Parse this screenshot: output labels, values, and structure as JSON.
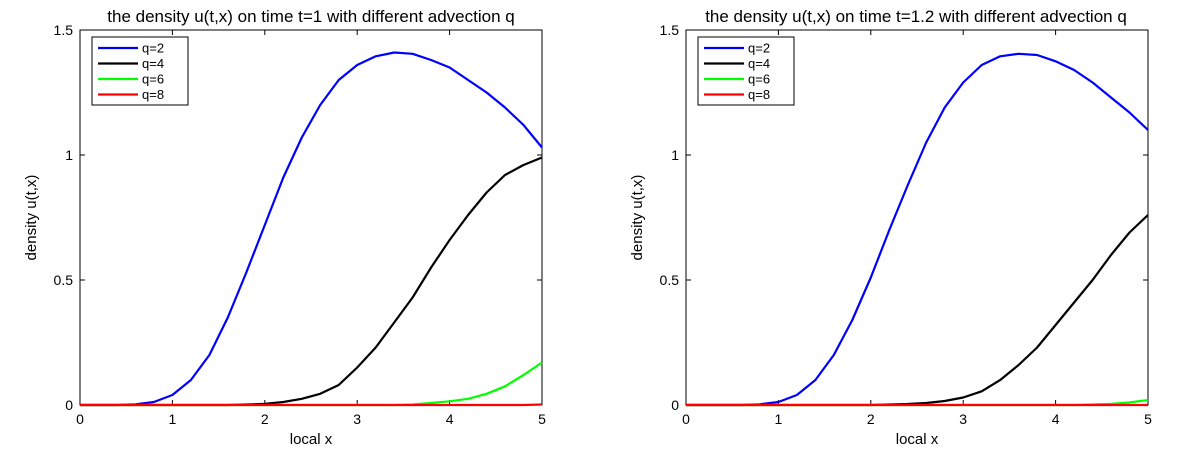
{
  "chart_data": [
    {
      "type": "line",
      "title": "the density u(t,x) on time t=1 with different advection q",
      "xlabel": "local x",
      "ylabel": "density u(t,x)",
      "xlim": [
        0,
        5
      ],
      "ylim": [
        0,
        1.5
      ],
      "xticks": [
        0,
        1,
        2,
        3,
        4,
        5
      ],
      "yticks": [
        0,
        0.5,
        1,
        1.5
      ],
      "xtick_labels": [
        "0",
        "1",
        "2",
        "3",
        "4",
        "5"
      ],
      "ytick_labels": [
        "0",
        "0.5",
        "1",
        "1.5"
      ],
      "grid": false,
      "legend_position": "top-left",
      "x": [
        0,
        0.2,
        0.4,
        0.6,
        0.8,
        1.0,
        1.2,
        1.4,
        1.6,
        1.8,
        2.0,
        2.2,
        2.4,
        2.6,
        2.8,
        3.0,
        3.2,
        3.4,
        3.6,
        3.8,
        4.0,
        4.2,
        4.4,
        4.6,
        4.8,
        5.0
      ],
      "series": [
        {
          "name": "q=2",
          "color": "#0000ff",
          "values": [
            0,
            0,
            0,
            0.003,
            0.012,
            0.04,
            0.1,
            0.2,
            0.35,
            0.53,
            0.72,
            0.91,
            1.07,
            1.2,
            1.3,
            1.36,
            1.395,
            1.41,
            1.405,
            1.38,
            1.35,
            1.3,
            1.25,
            1.19,
            1.12,
            1.03
          ]
        },
        {
          "name": "q=4",
          "color": "#000000",
          "values": [
            0,
            0,
            0,
            0,
            0,
            0,
            0,
            0,
            0,
            0.002,
            0.005,
            0.012,
            0.025,
            0.045,
            0.08,
            0.15,
            0.23,
            0.33,
            0.43,
            0.55,
            0.66,
            0.76,
            0.85,
            0.92,
            0.96,
            0.99
          ]
        },
        {
          "name": "q=6",
          "color": "#00ff00",
          "values": [
            0,
            0,
            0,
            0,
            0,
            0,
            0,
            0,
            0,
            0,
            0,
            0,
            0,
            0,
            0,
            0,
            0,
            0,
            0.002,
            0.008,
            0.015,
            0.025,
            0.045,
            0.075,
            0.12,
            0.17
          ]
        },
        {
          "name": "q=8",
          "color": "#ff0000",
          "values": [
            0,
            0,
            0,
            0,
            0,
            0,
            0,
            0,
            0,
            0,
            0,
            0,
            0,
            0,
            0,
            0,
            0,
            0,
            0,
            0,
            0,
            0,
            0,
            0,
            0,
            0.002
          ]
        }
      ]
    },
    {
      "type": "line",
      "title": "the density u(t,x) on time t=1.2 with different advection q",
      "xlabel": "local x",
      "ylabel": "density u(t,x)",
      "xlim": [
        0,
        5
      ],
      "ylim": [
        0,
        1.5
      ],
      "xticks": [
        0,
        1,
        2,
        3,
        4,
        5
      ],
      "yticks": [
        0,
        0.5,
        1,
        1.5
      ],
      "xtick_labels": [
        "0",
        "1",
        "2",
        "3",
        "4",
        "5"
      ],
      "ytick_labels": [
        "0",
        "0.5",
        "1",
        "1.5"
      ],
      "grid": false,
      "legend_position": "top-left",
      "x": [
        0,
        0.2,
        0.4,
        0.6,
        0.8,
        1.0,
        1.2,
        1.4,
        1.6,
        1.8,
        2.0,
        2.2,
        2.4,
        2.6,
        2.8,
        3.0,
        3.2,
        3.4,
        3.6,
        3.8,
        4.0,
        4.2,
        4.4,
        4.6,
        4.8,
        5.0
      ],
      "series": [
        {
          "name": "q=2",
          "color": "#0000ff",
          "values": [
            0,
            0,
            0,
            0,
            0.003,
            0.012,
            0.04,
            0.1,
            0.2,
            0.34,
            0.51,
            0.7,
            0.88,
            1.05,
            1.19,
            1.29,
            1.36,
            1.395,
            1.405,
            1.4,
            1.375,
            1.34,
            1.29,
            1.23,
            1.17,
            1.1
          ]
        },
        {
          "name": "q=4",
          "color": "#000000",
          "values": [
            0,
            0,
            0,
            0,
            0,
            0,
            0,
            0,
            0,
            0,
            0,
            0.002,
            0.004,
            0.008,
            0.016,
            0.03,
            0.055,
            0.1,
            0.16,
            0.23,
            0.32,
            0.41,
            0.5,
            0.6,
            0.69,
            0.76
          ]
        },
        {
          "name": "q=6",
          "color": "#00ff00",
          "values": [
            0,
            0,
            0,
            0,
            0,
            0,
            0,
            0,
            0,
            0,
            0,
            0,
            0,
            0,
            0,
            0,
            0,
            0,
            0,
            0,
            0,
            0,
            0.002,
            0.005,
            0.01,
            0.02
          ]
        },
        {
          "name": "q=8",
          "color": "#ff0000",
          "values": [
            0,
            0,
            0,
            0,
            0,
            0,
            0,
            0,
            0,
            0,
            0,
            0,
            0,
            0,
            0,
            0,
            0,
            0,
            0,
            0,
            0,
            0,
            0,
            0,
            0,
            0
          ]
        }
      ]
    }
  ]
}
